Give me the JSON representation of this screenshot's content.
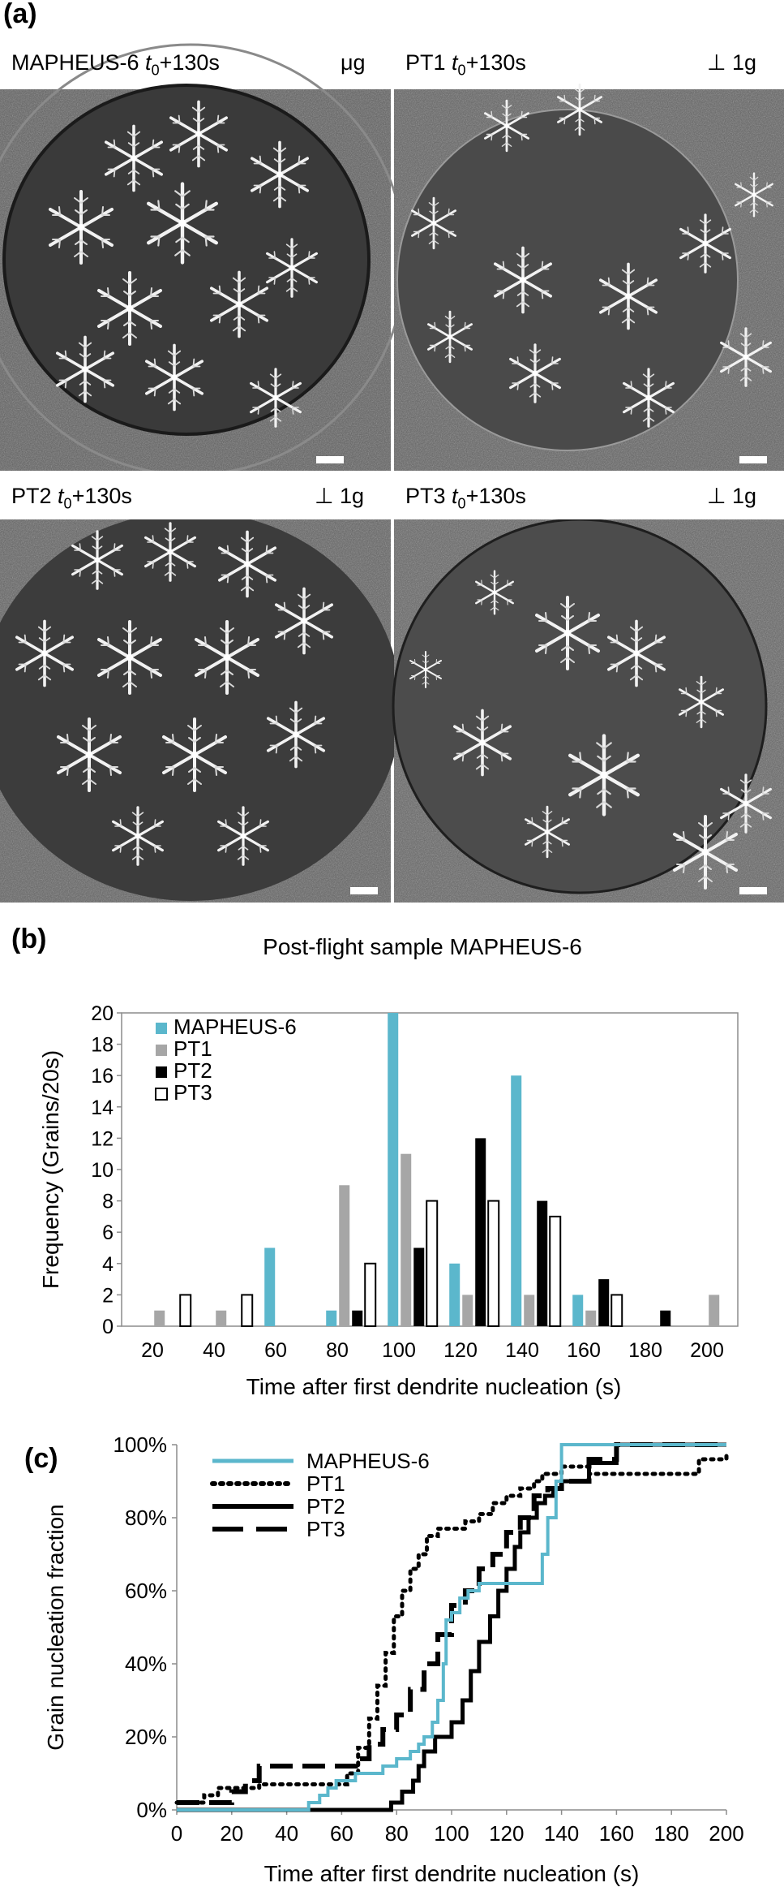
{
  "panel_a": {
    "label": "(a)",
    "frames": [
      {
        "sample": "MAPHEUS-6 ",
        "time_var": "t",
        "time_sub": "0",
        "time_suffix": "+130s",
        "gravity": "μg"
      },
      {
        "sample": "PT1 ",
        "time_var": "t",
        "time_sub": "0",
        "time_suffix": "+130s",
        "gravity": "⊥ 1g"
      },
      {
        "sample": "PT2 ",
        "time_var": "t",
        "time_sub": "0",
        "time_suffix": "+130s",
        "gravity": "⊥ 1g"
      },
      {
        "sample": "PT3 ",
        "time_var": "t",
        "time_sub": "0",
        "time_suffix": "+130s",
        "gravity": "⊥ 1g"
      }
    ]
  },
  "panel_b": {
    "label": "(b)",
    "chart_data": {
      "type": "bar",
      "title": "Post-flight sample MAPHEUS-6",
      "xlabel": "Time after first dendrite nucleation (s)",
      "ylabel": "Frequency (Grains/20s)",
      "categories": [
        20,
        40,
        60,
        80,
        100,
        120,
        140,
        160,
        180,
        200
      ],
      "ylim": [
        0,
        20
      ],
      "yticks": [
        0,
        2,
        4,
        6,
        8,
        10,
        12,
        14,
        16,
        18,
        20
      ],
      "legend_position": "top-left",
      "series": [
        {
          "name": "MAPHEUS-6",
          "color": "#5bb7cc",
          "values": [
            0,
            0,
            5,
            1,
            20,
            4,
            16,
            2,
            0,
            0
          ]
        },
        {
          "name": "PT1",
          "color": "#a6a6a6",
          "values": [
            1,
            1,
            0,
            9,
            11,
            2,
            2,
            1,
            0,
            2
          ]
        },
        {
          "name": "PT2",
          "color": "#000000",
          "values": [
            0,
            0,
            0,
            1,
            5,
            12,
            8,
            3,
            1,
            0
          ]
        },
        {
          "name": "PT3",
          "color": "#ffffff",
          "values": [
            2,
            2,
            0,
            4,
            8,
            8,
            7,
            2,
            0,
            0
          ]
        }
      ]
    }
  },
  "panel_c": {
    "label": "(c)",
    "chart_data": {
      "type": "line",
      "xlabel": "Time after first dendrite nucleation (s)",
      "ylabel": "Grain nucleation fraction",
      "xlim": [
        0,
        200
      ],
      "ylim": [
        0,
        100
      ],
      "xticks": [
        0,
        20,
        40,
        60,
        80,
        100,
        120,
        140,
        160,
        180,
        200
      ],
      "yticks": [
        "0%",
        "20%",
        "40%",
        "60%",
        "80%",
        "100%"
      ],
      "legend_position": "top-left",
      "series": [
        {
          "name": "MAPHEUS-6",
          "color": "#5bb7cc",
          "style": "solid",
          "x": [
            0,
            45,
            48,
            52,
            55,
            58,
            62,
            65,
            70,
            75,
            80,
            85,
            88,
            90,
            93,
            95,
            97,
            98,
            100,
            103,
            106,
            110,
            115,
            130,
            133,
            135,
            138,
            140,
            142,
            200
          ],
          "y": [
            0,
            0,
            2,
            4,
            6,
            8,
            8,
            10,
            10,
            12,
            14,
            16,
            18,
            20,
            24,
            30,
            40,
            52,
            54,
            58,
            60,
            62,
            62,
            62,
            70,
            80,
            90,
            100,
            100,
            100
          ]
        },
        {
          "name": "PT1",
          "color": "#000000",
          "style": "dotted",
          "x": [
            0,
            10,
            15,
            20,
            30,
            40,
            50,
            55,
            62,
            66,
            70,
            73,
            76,
            79,
            82,
            85,
            88,
            91,
            95,
            100,
            105,
            110,
            115,
            120,
            125,
            130,
            133,
            137,
            140,
            150,
            160,
            175,
            190,
            200
          ],
          "y": [
            2,
            4,
            6,
            6,
            7,
            7,
            7,
            7,
            10,
            17,
            25,
            34,
            43,
            53,
            60,
            66,
            70,
            75,
            77,
            77,
            79,
            81,
            84,
            86,
            88,
            90,
            92,
            92,
            94,
            92,
            92,
            92,
            96,
            98
          ]
        },
        {
          "name": "PT2",
          "color": "#000000",
          "style": "solid",
          "x": [
            0,
            75,
            78,
            82,
            86,
            88,
            90,
            94,
            98,
            100,
            104,
            107,
            110,
            114,
            117,
            120,
            123,
            125,
            128,
            131,
            134,
            137,
            140,
            150,
            160,
            200
          ],
          "y": [
            0,
            0,
            2,
            5,
            8,
            12,
            16,
            20,
            20,
            24,
            30,
            38,
            46,
            53,
            60,
            66,
            72,
            76,
            80,
            84,
            86,
            88,
            90,
            95,
            100,
            100
          ]
        },
        {
          "name": "PT3",
          "color": "#000000",
          "style": "dashed",
          "x": [
            0,
            10,
            20,
            25,
            30,
            40,
            50,
            60,
            65,
            70,
            75,
            80,
            85,
            90,
            95,
            100,
            105,
            110,
            115,
            120,
            125,
            130,
            135,
            140,
            150,
            160,
            200
          ],
          "y": [
            2,
            2,
            5,
            8,
            12,
            12,
            12,
            12,
            14,
            18,
            22,
            26,
            33,
            40,
            48,
            56,
            60,
            66,
            70,
            76,
            80,
            86,
            88,
            90,
            96,
            100,
            100
          ]
        }
      ]
    }
  }
}
